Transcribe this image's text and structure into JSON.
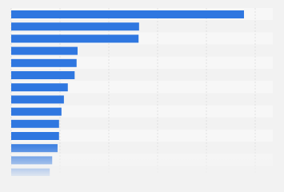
{
  "chart_data": {
    "type": "hbar",
    "categories": [
      null,
      null,
      null,
      null,
      null,
      null,
      null,
      null,
      null,
      null,
      null,
      null,
      null,
      null
    ],
    "values": [
      4.77,
      2.62,
      2.61,
      1.36,
      1.34,
      1.3,
      1.16,
      1.08,
      1.03,
      0.98,
      0.98,
      0.95,
      0.84,
      0.79
    ],
    "color": "#2f77e0",
    "xlim": [
      0,
      5
    ],
    "xticks": [
      0,
      1,
      2,
      3,
      4,
      5
    ],
    "grid": true
  }
}
